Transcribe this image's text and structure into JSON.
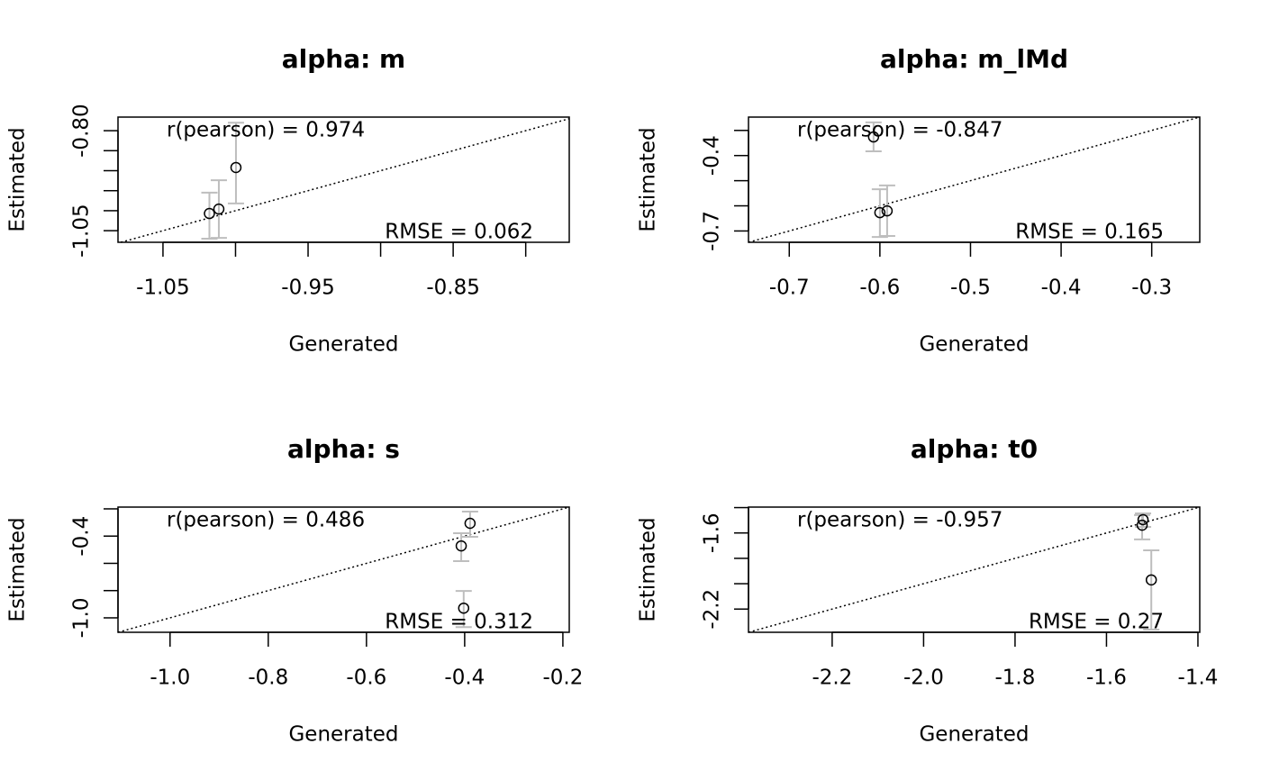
{
  "chart_data": [
    {
      "type": "scatter",
      "title": "alpha: m",
      "x_label": "Generated",
      "y_label": "Estimated",
      "x": [
        -0.9997,
        -1.0115,
        -1.018
      ],
      "values": [
        -0.892,
        -0.996,
        -1.007
      ],
      "lower": [
        -0.982,
        -1.068,
        -1.07
      ],
      "upper": [
        -0.78,
        -0.924,
        -0.955
      ],
      "xlim": [
        -1.081,
        -0.77
      ],
      "ylim": [
        -1.079,
        -0.766
      ],
      "xticks": [
        -1.05,
        -0.95,
        -0.85
      ],
      "xminorticks": [
        -1.0,
        -0.9,
        -0.8
      ],
      "yticks": [
        {
          "value": -0.8,
          "label": "-0.80"
        },
        -1.05
      ],
      "yminorticks": [
        -0.85,
        -0.9,
        -0.95,
        -1.0
      ],
      "r_text": "r(pearson) =  0.974",
      "rmse_text": "RMSE =  0.062"
    },
    {
      "type": "scatter",
      "title": "alpha: m_lMd",
      "x_label": "Generated",
      "y_label": "Estimated",
      "x": [
        -0.607,
        -0.6,
        -0.592
      ],
      "values": [
        -0.326,
        -0.627,
        -0.62
      ],
      "lower": [
        -0.383,
        -0.724,
        -0.72
      ],
      "upper": [
        -0.268,
        -0.534,
        -0.519
      ],
      "xlim": [
        -0.745,
        -0.247
      ],
      "ylim": [
        -0.745,
        -0.247
      ],
      "xticks": [
        -0.7,
        -0.6,
        -0.5,
        -0.4,
        -0.3
      ],
      "xminorticks": [],
      "yticks": [
        -0.4,
        -0.7
      ],
      "yminorticks": [
        -0.3,
        -0.5,
        -0.6
      ],
      "r_text": "r(pearson) =  -0.847",
      "rmse_text": "RMSE =  0.165"
    },
    {
      "type": "scatter",
      "title": "alpha: s",
      "x_label": "Generated",
      "y_label": "Estimated",
      "x": [
        -0.389,
        -0.407,
        -0.402
      ],
      "values": [
        -0.306,
        -0.472,
        -0.929
      ],
      "lower": [
        -0.405,
        -0.584,
        -1.068
      ],
      "upper": [
        -0.22,
        -0.379,
        -0.803
      ],
      "xlim": [
        -1.106,
        -0.187
      ],
      "ylim": [
        -1.106,
        -0.187
      ],
      "xticks": [
        {
          "value": -1.0,
          "label": "-1.0"
        },
        -0.8,
        -0.6,
        -0.4,
        -0.2
      ],
      "xminorticks": [],
      "yticks": [
        -0.4,
        {
          "value": -1.0,
          "label": "-1.0"
        }
      ],
      "yminorticks": [
        -0.2,
        -0.6,
        -0.8
      ],
      "r_text": "r(pearson) =  0.486",
      "rmse_text": "RMSE =  0.312"
    },
    {
      "type": "scatter",
      "title": "alpha: t0",
      "x_label": "Generated",
      "y_label": "Estimated",
      "x": [
        -1.52,
        -1.522,
        -1.502
      ],
      "values": [
        -1.495,
        -1.539,
        -1.97
      ],
      "lower": [
        -1.552,
        -1.651,
        -2.362
      ],
      "upper": [
        -1.446,
        -1.459,
        -1.737
      ],
      "xlim": [
        -2.383,
        -1.396
      ],
      "ylim": [
        -2.383,
        -1.396
      ],
      "xticks": [
        -2.2,
        {
          "value": -2.0,
          "label": "-2.0"
        },
        -1.8,
        -1.6,
        -1.4
      ],
      "xminorticks": [],
      "yticks": [
        -1.6,
        -2.2
      ],
      "yminorticks": [
        -1.4,
        -1.8,
        {
          "value": -2.0,
          "label": "-2.0"
        }
      ],
      "r_text": "r(pearson) =  -0.957",
      "rmse_text": "RMSE =  0.27"
    }
  ]
}
